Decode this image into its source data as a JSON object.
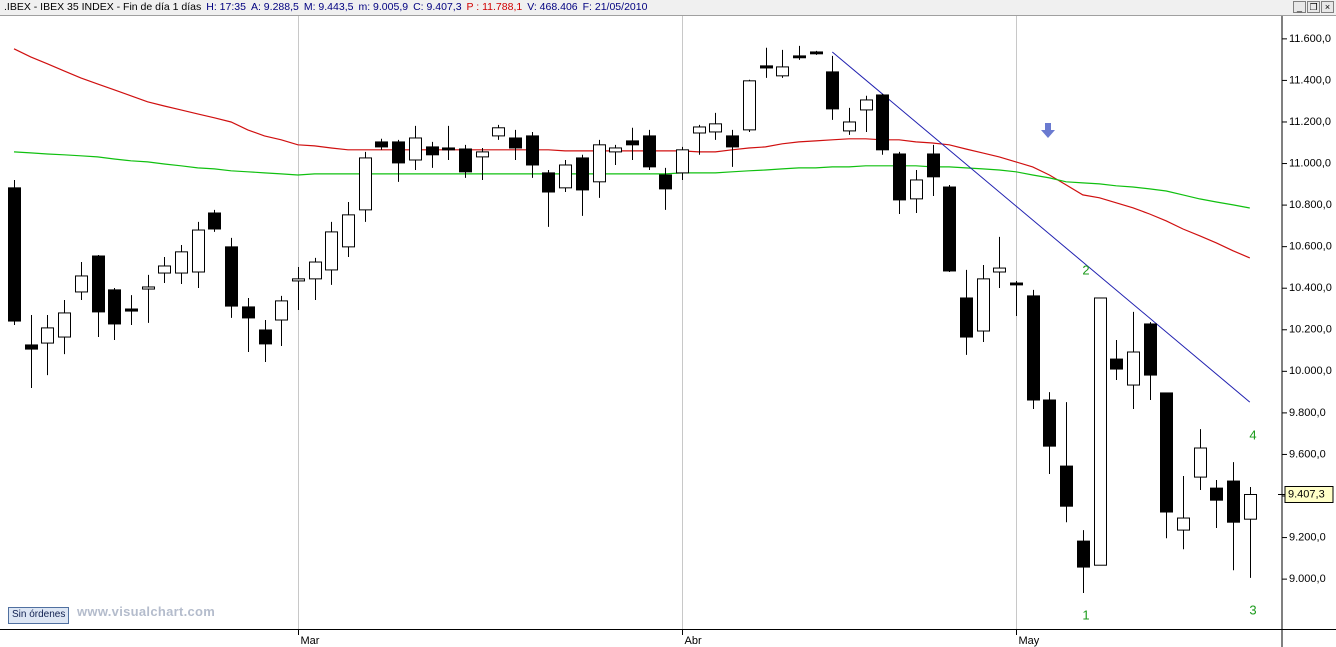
{
  "chart_data": {
    "type": "candlestick",
    "header": [
      {
        "text": ".IBEX - IBEX 35 INDEX - Fin de día 1 días",
        "color": "#000000"
      },
      {
        "text": "H: 17:35",
        "color": "#000080"
      },
      {
        "text": "A: 9.288,5",
        "color": "#000080"
      },
      {
        "text": "M: 9.443,5",
        "color": "#000080"
      },
      {
        "text": "m: 9.005,9",
        "color": "#000080"
      },
      {
        "text": "C: 9.407,3",
        "color": "#000080"
      },
      {
        "text": "P : 11.788,1",
        "color": "#d00000"
      },
      {
        "text": "V: 468.406",
        "color": "#000080"
      },
      {
        "text": "F: 21/05/2010",
        "color": "#000080"
      }
    ],
    "categories": [
      null,
      null,
      null,
      null,
      null,
      null,
      null,
      null,
      null,
      null,
      null,
      null,
      null,
      null,
      null,
      null,
      null,
      "Mar",
      null,
      null,
      null,
      null,
      null,
      null,
      null,
      null,
      null,
      null,
      null,
      null,
      null,
      null,
      null,
      null,
      null,
      null,
      null,
      null,
      null,
      null,
      "Abr",
      null,
      null,
      null,
      null,
      null,
      null,
      null,
      null,
      null,
      null,
      null,
      null,
      null,
      null,
      null,
      null,
      null,
      null,
      null,
      "May",
      null,
      null,
      null,
      null,
      null,
      null,
      null,
      null,
      null,
      null,
      null,
      null,
      null,
      null
    ],
    "open": [
      10883,
      10127,
      10136,
      10165,
      10382,
      10555,
      10392,
      10300,
      10396,
      10473,
      10473,
      10478,
      10762,
      10599,
      10310,
      10199,
      10247,
      10435,
      10445,
      10488,
      10599,
      10777,
      11104,
      11104,
      11017,
      11080,
      11075,
      11070,
      11032,
      11133,
      11123,
      11133,
      10955,
      10883,
      11027,
      10912,
      11056,
      11109,
      11133,
      10945,
      10955,
      11147,
      11152,
      11133,
      11162,
      11470,
      11422,
      11518,
      11537,
      11441,
      11157,
      11258,
      11330,
      11046,
      10830,
      11046,
      10887,
      10353,
      10194,
      10478,
      10425,
      10363,
      9862,
      9544,
      9183,
      9067,
      10059,
      9934,
      10228,
      9896,
      9236,
      9491,
      9438,
      9472,
      9288.5
    ],
    "high": [
      10921,
      10271,
      10271,
      10343,
      10526,
      10560,
      10401,
      10367,
      10464,
      10550,
      10608,
      10719,
      10777,
      10642,
      10353,
      10247,
      10363,
      10502,
      10546,
      10719,
      10815,
      11056,
      11119,
      11114,
      11181,
      11104,
      11181,
      11090,
      11075,
      11186,
      11162,
      11152,
      10969,
      11017,
      11042,
      11114,
      11090,
      11172,
      11162,
      10979,
      11080,
      11186,
      11244,
      11162,
      11403,
      11557,
      11547,
      11566,
      11542,
      11518,
      11268,
      11326,
      11335,
      11056,
      10969,
      11090,
      10897,
      10488,
      10512,
      10647,
      10435,
      10392,
      9900,
      9852,
      9236,
      10353,
      10151,
      10286,
      10237,
      9896,
      9496,
      9722,
      9477,
      9563,
      9443.5
    ],
    "low": [
      10223,
      9920,
      9982,
      10083,
      10343,
      10165,
      10151,
      10223,
      10233,
      10425,
      10420,
      10401,
      10671,
      10257,
      10093,
      10045,
      10122,
      10295,
      10343,
      10416,
      10550,
      10719,
      11066,
      10912,
      10969,
      10979,
      11017,
      10931,
      10921,
      11114,
      11017,
      10931,
      10695,
      10863,
      10748,
      10835,
      10993,
      11017,
      10969,
      10777,
      10921,
      11042,
      11114,
      10984,
      11152,
      11412,
      11412,
      11499,
      11523,
      11210,
      11138,
      11152,
      11042,
      10757,
      10762,
      10844,
      10478,
      10079,
      10141,
      10401,
      10266,
      9819,
      9506,
      9274,
      8933,
      9067,
      9958,
      9819,
      9862,
      9197,
      9144,
      9429,
      9246,
      9043,
      9005.9
    ],
    "close": [
      10242,
      10107,
      10209,
      10281,
      10459,
      10286,
      10228,
      10290,
      10406,
      10507,
      10575,
      10680,
      10685,
      10314,
      10257,
      10132,
      10339,
      10445,
      10526,
      10671,
      10753,
      11027,
      11080,
      11003,
      11123,
      11042,
      11066,
      10960,
      11056,
      11172,
      11075,
      10993,
      10863,
      10993,
      10873,
      11090,
      11075,
      11090,
      10984,
      10878,
      11066,
      11176,
      11191,
      11080,
      11398,
      11460,
      11465,
      11509,
      11528,
      11263,
      11200,
      11306,
      11066,
      10825,
      10921,
      10936,
      10483,
      10165,
      10445,
      10497,
      10416,
      9862,
      9640,
      9351,
      9058,
      10353,
      10011,
      10093,
      9982,
      9323,
      9294,
      9631,
      9380,
      9274,
      9407.3
    ],
    "up_color": "#ffffff",
    "down_color": "#000000",
    "lines": [
      {
        "color": "#d01010",
        "values": [
          11552,
          11513,
          11480,
          11446,
          11412,
          11383,
          11355,
          11326,
          11297,
          11277,
          11258,
          11239,
          11220,
          11200,
          11162,
          11133,
          11114,
          11090,
          11085,
          11075,
          11066,
          11066,
          11066,
          11066,
          11066,
          11066,
          11066,
          11066,
          11066,
          11066,
          11066,
          11066,
          11066,
          11061,
          11061,
          11061,
          11061,
          11061,
          11061,
          11061,
          11061,
          11056,
          11056,
          11066,
          11075,
          11080,
          11095,
          11104,
          11109,
          11114,
          11119,
          11119,
          11114,
          11114,
          11104,
          11099,
          11090,
          11070,
          11051,
          11032,
          11008,
          10984,
          10945,
          10897,
          10849,
          10835,
          10811,
          10787,
          10757,
          10724,
          10685,
          10652,
          10618,
          10580,
          10546
        ]
      },
      {
        "color": "#10c010",
        "values": [
          11056,
          11051,
          11046,
          11042,
          11037,
          11032,
          11022,
          11013,
          11008,
          10998,
          10989,
          10979,
          10974,
          10965,
          10960,
          10955,
          10950,
          10945,
          10950,
          10950,
          10950,
          10950,
          10950,
          10950,
          10950,
          10950,
          10950,
          10950,
          10950,
          10950,
          10950,
          10950,
          10950,
          10950,
          10950,
          10950,
          10950,
          10950,
          10950,
          10950,
          10955,
          10955,
          10955,
          10960,
          10965,
          10969,
          10974,
          10979,
          10979,
          10984,
          10984,
          10989,
          10989,
          10989,
          10989,
          10984,
          10984,
          10979,
          10974,
          10969,
          10960,
          10945,
          10931,
          10912,
          10907,
          10902,
          10893,
          10887,
          10878,
          10868,
          10849,
          10830,
          10815,
          10801,
          10786
        ]
      }
    ],
    "trendline": {
      "color": "#2020b0",
      "at": [
        49,
        74
      ],
      "values": [
        11537,
        9852
      ]
    },
    "annotations": [
      "1",
      "2",
      "3",
      "4"
    ],
    "annotation_color": "#1a9a1a",
    "last_price_label": "9.407,3",
    "ylim": [
      8760,
      11710
    ],
    "yticks": [
      {
        "value": 9000,
        "label": "9.000,0"
      },
      {
        "value": 9200,
        "label": "9.200,0"
      },
      {
        "value": 9400,
        "label": "9.400,0"
      },
      {
        "value": 9600,
        "label": "9.600,0"
      },
      {
        "value": 9800,
        "label": "9.800,0"
      },
      {
        "value": 10000,
        "label": "10.000,0"
      },
      {
        "value": 10200,
        "label": "10.200,0"
      },
      {
        "value": 10400,
        "label": "10.400,0"
      },
      {
        "value": 10600,
        "label": "10.600,0"
      },
      {
        "value": 10800,
        "label": "10.800,0"
      },
      {
        "value": 11000,
        "label": "11.000,0"
      },
      {
        "value": 11200,
        "label": "11.200,0"
      },
      {
        "value": 11400,
        "label": "11.400,0"
      },
      {
        "value": 11600,
        "label": "11.600,0"
      }
    ],
    "button": "Sin órdenes",
    "watermark": "www.visualchart.com"
  }
}
